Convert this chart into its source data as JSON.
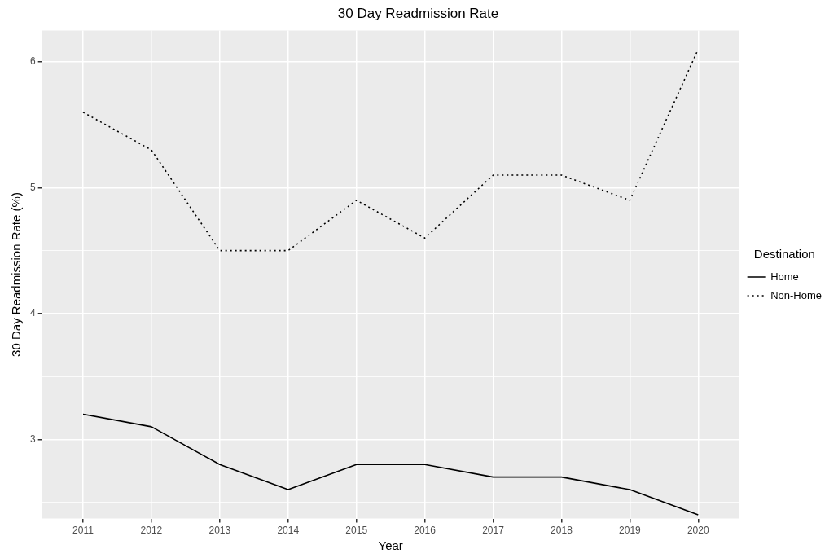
{
  "chart_data": {
    "type": "line",
    "title": "30 Day Readmission Rate",
    "xlabel": "Year",
    "ylabel": "30 Day Readmission Rate (%)",
    "legend_title": "Destination",
    "legend": "right",
    "grid": true,
    "marker": "none",
    "x": [
      2011,
      2012,
      2013,
      2014,
      2015,
      2016,
      2017,
      2018,
      2019,
      2020
    ],
    "xlim": [
      2010.4,
      2020.6
    ],
    "xticks": [
      2011,
      2012,
      2013,
      2014,
      2015,
      2016,
      2017,
      2018,
      2019,
      2020
    ],
    "ylim": [
      2.37,
      6.25
    ],
    "yticks": [
      {
        "value": 2.5,
        "label": null
      },
      3,
      {
        "value": 3.5,
        "label": null
      },
      4,
      {
        "value": 4.5,
        "label": null
      },
      5,
      {
        "value": 5.5,
        "label": null
      },
      6
    ],
    "series": [
      {
        "name": "Home",
        "color": "#000000",
        "line_style": "solid",
        "values": [
          3.2,
          3.1,
          2.8,
          2.6,
          2.8,
          2.8,
          2.7,
          2.7,
          2.6,
          2.4
        ]
      },
      {
        "name": "Non-Home",
        "color": "#000000",
        "line_style": "dotted",
        "values": [
          5.6,
          5.3,
          4.5,
          4.5,
          4.9,
          4.6,
          5.1,
          5.1,
          4.9,
          6.1
        ]
      }
    ]
  }
}
